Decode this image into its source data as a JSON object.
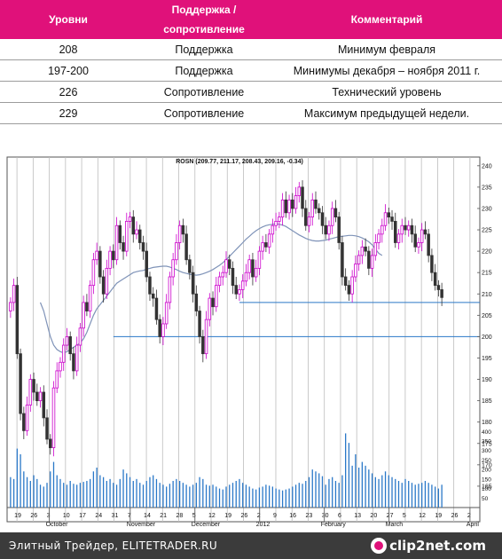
{
  "table": {
    "headers": [
      "Уровни",
      "Поддержка / сопротивление",
      "Комментарий"
    ],
    "rows": [
      {
        "level": "208",
        "type": "Поддержка",
        "kind": "support",
        "comment": "Минимум февраля"
      },
      {
        "level": "197-200",
        "type": "Поддержка",
        "kind": "support",
        "comment": "Минимумы декабря – ноября 2011 г."
      },
      {
        "level": "226",
        "type": "Сопротивление",
        "kind": "resistance",
        "comment": "Технический уровень"
      },
      {
        "level": "229",
        "type": "Сопротивление",
        "kind": "resistance",
        "comment": "Максимум предыдущей недели."
      }
    ]
  },
  "colors": {
    "header_bg": "#e0117a",
    "support": "#1e9e3a",
    "resistance": "#e8141b",
    "candle_up": "#cc00cc",
    "candle_down": "#333333",
    "volume": "#2a78c8",
    "moving_average": "#7f93b8",
    "level_line": "#2a78c8"
  },
  "chart_data": {
    "type": "candlestick",
    "title": "ROSN (209.77, 211.17, 208.43, 209.16, -0.34)",
    "ylim": [
      160,
      241
    ],
    "price_ticks": [
      "240",
      "235",
      "230",
      "225",
      "220",
      "215",
      "210",
      "205",
      "200",
      "195",
      "190",
      "185",
      "180",
      "175",
      "170",
      "165"
    ],
    "volume_ticks": [
      "400",
      "350",
      "300",
      "250",
      "200",
      "150",
      "100",
      "50"
    ],
    "volume_max": 420,
    "x_tick_labels": [
      "19",
      "26",
      "3",
      "10",
      "17",
      "24",
      "31",
      "7",
      "14",
      "21",
      "28",
      "5",
      "12",
      "19",
      "26",
      "2",
      "9",
      "16",
      "23",
      "30",
      "6",
      "13",
      "20",
      "27",
      "5",
      "12",
      "19",
      "26",
      "2"
    ],
    "month_labels": [
      "October",
      "November",
      "December",
      "2012",
      "February",
      "March",
      "April"
    ],
    "horizontal_levels": [
      {
        "value": 208,
        "from_index": 69
      },
      {
        "value": 200,
        "from_index": 31
      }
    ],
    "closes": [
      208,
      212,
      196,
      182,
      178,
      184,
      190,
      187,
      185,
      187,
      181,
      176,
      174,
      188,
      192,
      194,
      198,
      200,
      196,
      192,
      198,
      202,
      208,
      206,
      212,
      218,
      220,
      214,
      210,
      216,
      220,
      218,
      226,
      222,
      220,
      227,
      228,
      224,
      225,
      222,
      220,
      214,
      210,
      209,
      204,
      200,
      203,
      208,
      214,
      218,
      222,
      226,
      224,
      218,
      215,
      210,
      206,
      200,
      196,
      204,
      209,
      207,
      212,
      214,
      215,
      218,
      216,
      212,
      210,
      211,
      213,
      215,
      218,
      214,
      216,
      220,
      222,
      221,
      224,
      226,
      227,
      228,
      232,
      229,
      232,
      230,
      233,
      235,
      230,
      226,
      228,
      232,
      230,
      229,
      226,
      224,
      226,
      230,
      228,
      222,
      214,
      212,
      210,
      214,
      217,
      219,
      221,
      220,
      216,
      219,
      222,
      224,
      226,
      229,
      228,
      227,
      222,
      224,
      226,
      225,
      226,
      224,
      221,
      222,
      225,
      224,
      219,
      215,
      212,
      211,
      209.16
    ],
    "volumes": [
      160,
      150,
      310,
      280,
      190,
      160,
      140,
      170,
      150,
      120,
      110,
      130,
      190,
      240,
      170,
      150,
      130,
      120,
      140,
      125,
      120,
      130,
      135,
      140,
      150,
      190,
      210,
      170,
      160,
      140,
      150,
      130,
      120,
      150,
      200,
      180,
      160,
      140,
      150,
      130,
      120,
      140,
      160,
      170,
      150,
      130,
      120,
      110,
      125,
      140,
      150,
      140,
      130,
      120,
      110,
      120,
      130,
      160,
      150,
      120,
      115,
      120,
      110,
      100,
      95,
      110,
      120,
      130,
      140,
      150,
      130,
      120,
      110,
      100,
      95,
      105,
      110,
      120,
      115,
      110,
      100,
      95,
      90,
      95,
      100,
      110,
      120,
      130,
      125,
      140,
      160,
      200,
      190,
      180,
      165,
      120,
      150,
      160,
      140,
      130,
      170,
      390,
      340,
      220,
      280,
      210,
      240,
      220,
      200,
      180,
      160,
      150,
      170,
      190,
      170,
      160,
      150,
      140,
      130,
      150,
      140,
      130,
      120,
      125,
      130,
      140,
      130,
      120,
      110,
      100,
      120
    ],
    "ma_start_index": 9,
    "ma_values": [
      208,
      206,
      203,
      200,
      198,
      197,
      196.5,
      196.2,
      196.5,
      197,
      197.5,
      198,
      198.5,
      199.5,
      201,
      203,
      205,
      206.5,
      207.5,
      208.5,
      209.5,
      210.5,
      211.5,
      212.5,
      213,
      213.5,
      214,
      214.5,
      215,
      215.2,
      215.4,
      215.5,
      215.8,
      216,
      216.2,
      216.3,
      216.4,
      216.5,
      216.5,
      216.3,
      216,
      215.7,
      215.3,
      215,
      214.8,
      214.6,
      214.5,
      214.4,
      214.5,
      214.7,
      215,
      215.3,
      215.7,
      216.2,
      216.7,
      217.3,
      218,
      218.8,
      219.6,
      220.4,
      221.2,
      222,
      222.8,
      223.5,
      224.2,
      224.8,
      225.3,
      225.7,
      226,
      226.2,
      226.3,
      226.4,
      226.3,
      226.1,
      225.8,
      225.3,
      224.8,
      224.3,
      223.8,
      223.4,
      223,
      222.7,
      222.5,
      222.4,
      222.4,
      222.5,
      222.6,
      222.8,
      223,
      223.2,
      223.4,
      223.5,
      223.6,
      223.7,
      223.7,
      223.6,
      223.4,
      223.1,
      222.7,
      222.2,
      221.5,
      220.5,
      219.5,
      219
    ]
  },
  "footer": {
    "text": "Элитный Трейдер, ELITETRADER.RU",
    "brand": "clip2net.com"
  }
}
